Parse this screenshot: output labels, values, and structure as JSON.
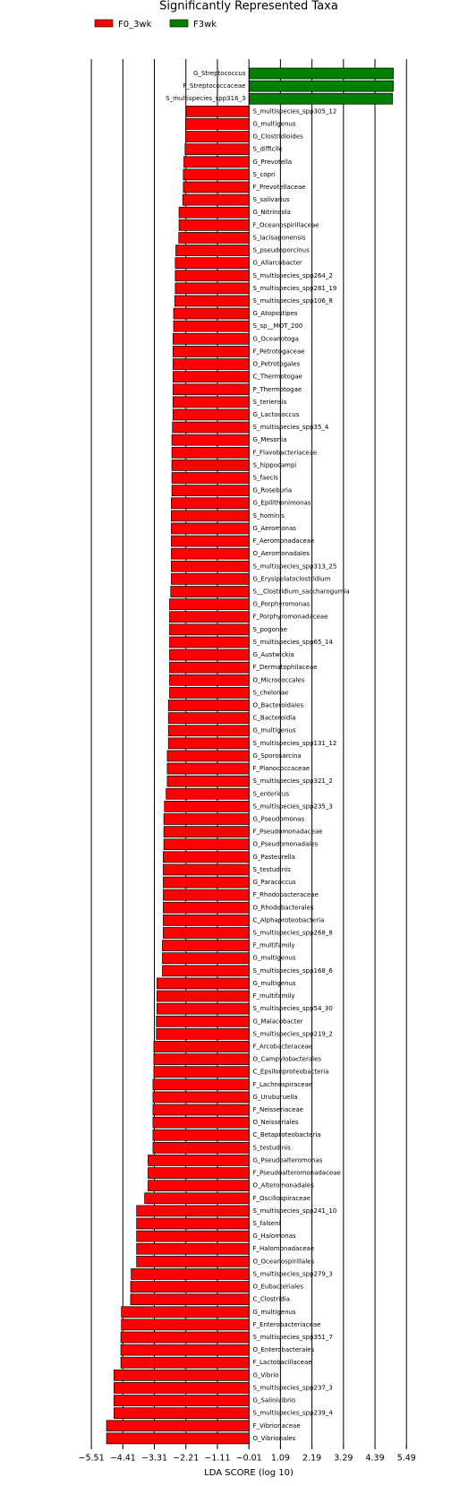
{
  "chart_data": {
    "type": "bar",
    "orientation": "horizontal",
    "title": "Significantly Represented Taxa",
    "x_label": "LDA SCORE (log 10)",
    "categories": [
      "G_Streptococcus",
      "F_Streptococcaceae",
      "S_multispecies_spp316_3",
      "S_multispecies_spp305_12",
      "G_multigenus",
      "G_Clostridioides",
      "S_difficile",
      "G_Prevotella",
      "S_copri",
      "F_Prevotellaceae",
      "S_salivarius",
      "G_Nitrincola",
      "F_Oceanospirillaceae",
      "S_lacisaponensis",
      "S_pseudoporcinus",
      "G_Allarcobacter",
      "S_multispecies_spp264_2",
      "S_multispecies_spp281_19",
      "S_multispecies_spp106_8",
      "G_Atopostipes",
      "S_sp__MOT_200",
      "G_Oceanotoga",
      "F_Petrotogaceae",
      "O_Petrotogales",
      "C_Thermotogae",
      "P_Thermotogae",
      "S_teriensis",
      "G_Lactococcus",
      "S_multispecies_spp35_4",
      "G_Mesonia",
      "F_Flavobacteriaceae",
      "S_hippocampi",
      "S_faecis",
      "G_Roseburia",
      "G_Epilithonimonas",
      "S_hominis",
      "G_Aeromonas",
      "F_Aeromonadaceae",
      "O_Aeromonadales",
      "S_multispecies_spp313_25",
      "G_Erysipelatoclostridium",
      "S__Clostridium_saccharogumia",
      "G_Porphyromonas",
      "F_Porphyromonadaceae",
      "S_pogonae",
      "S_multispecies_spp65_14",
      "G_Austwickia",
      "F_Dermatophilaceae",
      "O_Micrococcales",
      "S_chelonae",
      "O_Bacteroidales",
      "C_Bacteroidia",
      "G_multigenus",
      "S_multispecies_spp131_12",
      "G_Sporosarcina",
      "F_Planococcaceae",
      "S_multispecies_spp321_2",
      "S_entericus",
      "S_multispecies_spp235_3",
      "G_Pseudomonas",
      "F_Pseudomonadaceae",
      "O_Pseudomonadales",
      "G_Pasteurella",
      "S_testudinis",
      "G_Paracoccus",
      "F_Rhodobacteraceae",
      "O_Rhodobacterales",
      "C_Alphaproteobacteria",
      "S_multispecies_spp268_8",
      "F_multifamily",
      "G_multigenus",
      "S_multispecies_spp168_6",
      "G_multigenus",
      "F_multifamily",
      "S_multispecies_spp54_30",
      "G_Malacobacter",
      "S_multispecies_spp219_2",
      "F_Arcobacteraceae",
      "O_Campylobacterales",
      "C_Epsilonproteobacteria",
      "F_Lachnospiraceae",
      "G_Uruburuella",
      "F_Neisseriaceae",
      "O_Neisseriales",
      "C_Betaproteobacteria",
      "S_testudinis",
      "G_Pseudoalteromonas",
      "F_Pseudoalteromonadaceae",
      "O_Alteromonadales",
      "F_Oscillospiraceae",
      "S_multispecies_spp241_10",
      "S_falseni",
      "G_Halomonas",
      "F_Halomonadaceae",
      "O_Oceanospirillales",
      "S_multispecies_spp279_3",
      "O_Eubacteriales",
      "C_Clostridia",
      "G_multigenus",
      "F_Enterobacteriaceae",
      "S_multispecies_spp351_7",
      "O_Enterobacterales",
      "F_Lactobacillaceae",
      "G_Vibrio",
      "S_multispecies_spp237_3",
      "G_Salinivibrio",
      "S_multispecies_spp239_4",
      "F_Vibrionaceae",
      "O_Vibrionales"
    ],
    "series": [
      {
        "name": "F0_3wk",
        "color": "#ff0000",
        "values": [
          null,
          null,
          null,
          -2.2,
          -2.22,
          -2.22,
          -2.24,
          -2.28,
          -2.3,
          -2.3,
          -2.32,
          -2.45,
          -2.45,
          -2.46,
          -2.56,
          -2.58,
          -2.58,
          -2.58,
          -2.6,
          -2.64,
          -2.64,
          -2.66,
          -2.66,
          -2.66,
          -2.66,
          -2.66,
          -2.66,
          -2.66,
          -2.68,
          -2.7,
          -2.7,
          -2.7,
          -2.7,
          -2.7,
          -2.72,
          -2.72,
          -2.72,
          -2.72,
          -2.72,
          -2.72,
          -2.72,
          -2.74,
          -2.78,
          -2.78,
          -2.78,
          -2.78,
          -2.78,
          -2.78,
          -2.78,
          -2.78,
          -2.82,
          -2.82,
          -2.82,
          -2.82,
          -2.86,
          -2.86,
          -2.86,
          -2.9,
          -2.96,
          -2.98,
          -2.98,
          -2.98,
          -3.0,
          -3.0,
          -3.0,
          -3.0,
          -3.0,
          -3.0,
          -3.0,
          -3.03,
          -3.03,
          -3.03,
          -3.22,
          -3.22,
          -3.22,
          -3.24,
          -3.24,
          -3.33,
          -3.33,
          -3.33,
          -3.36,
          -3.36,
          -3.36,
          -3.36,
          -3.36,
          -3.36,
          -3.53,
          -3.53,
          -3.53,
          -3.65,
          -3.93,
          -3.93,
          -3.93,
          -3.93,
          -3.93,
          -4.12,
          -4.14,
          -4.14,
          -4.46,
          -4.46,
          -4.48,
          -4.48,
          -4.48,
          -4.72,
          -4.72,
          -4.72,
          -4.72,
          -4.98,
          -4.98
        ]
      },
      {
        "name": "F3wk",
        "color": "#008000",
        "values": [
          5.03,
          5.03,
          5.0,
          null,
          null,
          null,
          null,
          null,
          null,
          null,
          null,
          null,
          null,
          null,
          null,
          null,
          null,
          null,
          null,
          null,
          null,
          null,
          null,
          null,
          null,
          null,
          null,
          null,
          null,
          null,
          null,
          null,
          null,
          null,
          null,
          null,
          null,
          null,
          null,
          null,
          null,
          null,
          null,
          null,
          null,
          null,
          null,
          null,
          null,
          null,
          null,
          null,
          null,
          null,
          null,
          null,
          null,
          null,
          null,
          null,
          null,
          null,
          null,
          null,
          null,
          null,
          null,
          null,
          null,
          null,
          null,
          null,
          null,
          null,
          null,
          null,
          null,
          null,
          null,
          null,
          null,
          null,
          null,
          null,
          null,
          null,
          null,
          null,
          null,
          null,
          null,
          null,
          null,
          null,
          null,
          null,
          null,
          null,
          null,
          null,
          null,
          null,
          null,
          null,
          null,
          null,
          null,
          null,
          null
        ]
      }
    ],
    "xlim": [
      -6.2,
      6.2
    ],
    "xticks": [
      {
        "value": -5.51,
        "label": "−5.51"
      },
      {
        "value": -4.41,
        "label": "−4.41"
      },
      {
        "value": -3.31,
        "label": "−3.31"
      },
      {
        "value": -2.21,
        "label": "−2.21"
      },
      {
        "value": -1.11,
        "label": "−1.11"
      },
      {
        "value": -0.01,
        "label": "−0.01"
      },
      1.09,
      2.19,
      3.29,
      4.39,
      5.49
    ],
    "grid": true
  }
}
